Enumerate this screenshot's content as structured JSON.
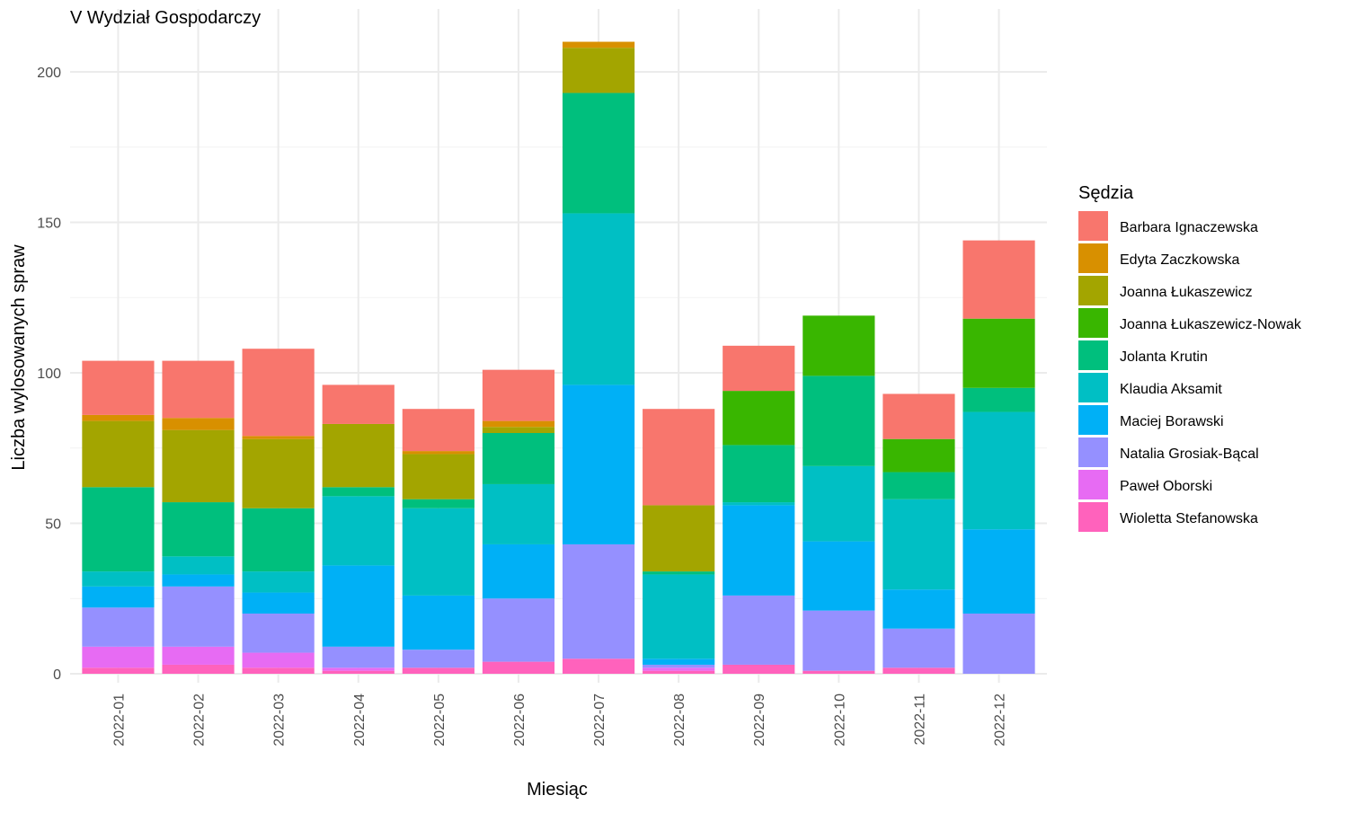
{
  "chart_data": {
    "type": "bar",
    "stacked": true,
    "title": "V Wydział Gospodarczy",
    "xlabel": "Miesiąc",
    "ylabel": "Liczba wylosowanych spraw",
    "ylim": [
      0,
      210
    ],
    "yticks": [
      0,
      50,
      100,
      150,
      200
    ],
    "grid": true,
    "legend": {
      "title": "Sędzia",
      "placement": "right"
    },
    "categories": [
      "2022-01",
      "2022-02",
      "2022-03",
      "2022-04",
      "2022-05",
      "2022-06",
      "2022-07",
      "2022-08",
      "2022-09",
      "2022-10",
      "2022-11",
      "2022-12"
    ],
    "series": [
      {
        "name": "Barbara Ignaczewska",
        "color": "#F8766D",
        "values": [
          18,
          19,
          29,
          13,
          14,
          17,
          0,
          32,
          15,
          0,
          15,
          26
        ]
      },
      {
        "name": "Edyta Zaczkowska",
        "color": "#D89000",
        "values": [
          2,
          4,
          1,
          0,
          1,
          2,
          2,
          0,
          0,
          0,
          0,
          0
        ]
      },
      {
        "name": "Joanna Łukaszewicz",
        "color": "#A3A500",
        "values": [
          22,
          24,
          23,
          21,
          15,
          2,
          15,
          22,
          0,
          0,
          0,
          0
        ]
      },
      {
        "name": "Joanna Łukaszewicz-Nowak",
        "color": "#39B600",
        "values": [
          0,
          0,
          0,
          0,
          0,
          0,
          0,
          0,
          18,
          20,
          11,
          23
        ]
      },
      {
        "name": "Jolanta Krutin",
        "color": "#00BF7D",
        "values": [
          28,
          18,
          21,
          3,
          3,
          17,
          40,
          1,
          19,
          30,
          9,
          8
        ]
      },
      {
        "name": "Klaudia Aksamit",
        "color": "#00BFC4",
        "values": [
          5,
          6,
          7,
          23,
          29,
          20,
          57,
          28,
          1,
          25,
          30,
          39
        ]
      },
      {
        "name": "Maciej Borawski",
        "color": "#00B0F6",
        "values": [
          7,
          4,
          7,
          27,
          18,
          18,
          53,
          2,
          30,
          23,
          13,
          28
        ]
      },
      {
        "name": "Natalia Grosiak-Bącal",
        "color": "#9590FF",
        "values": [
          13,
          20,
          13,
          7,
          6,
          21,
          38,
          1,
          23,
          20,
          13,
          20
        ]
      },
      {
        "name": "Paweł Oborski",
        "color": "#E76BF3",
        "values": [
          7,
          6,
          5,
          1,
          0,
          0,
          0,
          1,
          0,
          0,
          0,
          0
        ]
      },
      {
        "name": "Wioletta Stefanowska",
        "color": "#FF62BC",
        "values": [
          2,
          3,
          2,
          1,
          2,
          4,
          5,
          1,
          3,
          1,
          2,
          0
        ]
      }
    ]
  }
}
